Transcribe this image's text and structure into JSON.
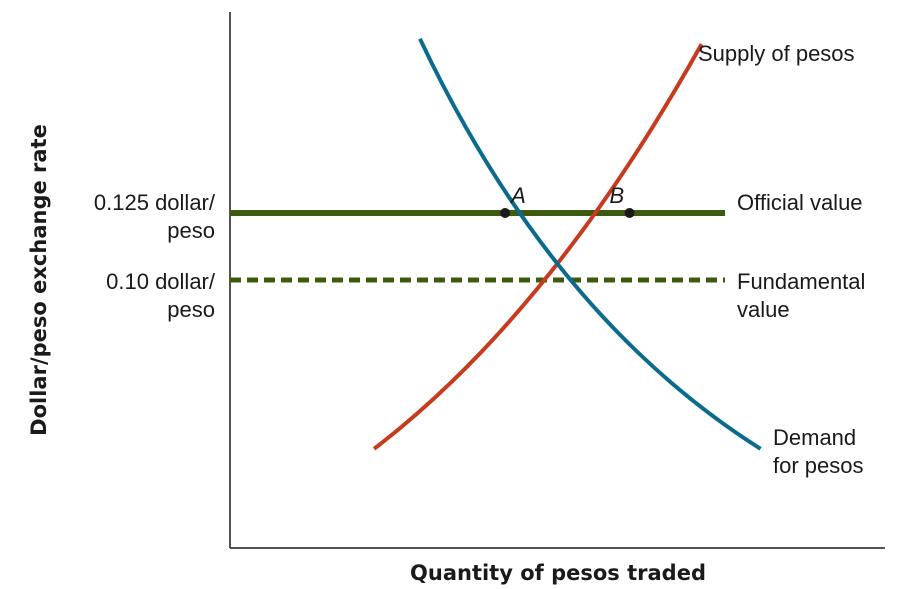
{
  "chart_data": {
    "type": "line",
    "title": "",
    "xlabel": "Quantity of pesos traded",
    "ylabel": "Dollar/peso exchange rate",
    "grid": false,
    "legend": "none",
    "y_ticks": [
      {
        "value": 0.125,
        "line1": "0.125 dollar/",
        "line2": "peso"
      },
      {
        "value": 0.1,
        "line1": "0.10 dollar/",
        "line2": "peso"
      }
    ],
    "horizontal_lines": [
      {
        "name_line1": "Official value",
        "name_line2": "",
        "y": 0.125,
        "style": "solid",
        "color": "#3d5a0f"
      },
      {
        "name_line1": "Fundamental",
        "name_line2": "value",
        "y": 0.1,
        "style": "dashed",
        "color": "#3d5a0f"
      }
    ],
    "series": [
      {
        "name_line1": "Supply of pesos",
        "name_line2": "",
        "color": "#c83a1e",
        "curve": "supply",
        "x": [
          0.22,
          0.48,
          0.72
        ],
        "y": [
          0.037,
          0.1,
          0.188
        ]
      },
      {
        "name_line1": "Demand",
        "name_line2": "for pesos",
        "color": "#0a6b8c",
        "curve": "demand",
        "x": [
          0.29,
          0.52,
          0.81
        ],
        "y": [
          0.19,
          0.1,
          0.037
        ]
      }
    ],
    "points": [
      {
        "label": "A",
        "x": 0.42,
        "y": 0.125
      },
      {
        "label": "B",
        "x": 0.61,
        "y": 0.125
      }
    ]
  }
}
